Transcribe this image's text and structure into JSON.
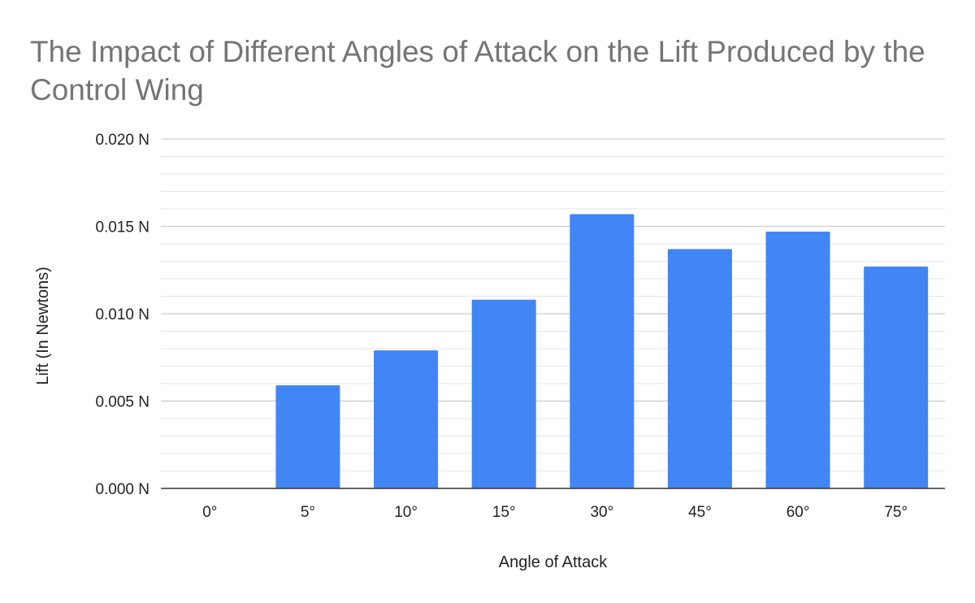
{
  "chart_data": {
    "type": "bar",
    "title": "The Impact of Different Angles of Attack on the Lift Produced by the Control Wing",
    "xlabel": "Angle of Attack",
    "ylabel": "Lift (In Newtons)",
    "categories": [
      "0°",
      "5°",
      "10°",
      "15°",
      "30°",
      "45°",
      "60°",
      "75°"
    ],
    "values": [
      0,
      0.0059,
      0.0079,
      0.0108,
      0.0157,
      0.0137,
      0.0147,
      0.0127
    ],
    "ylim": [
      0,
      0.02
    ],
    "yticks": [
      {
        "value": 0,
        "label": "0.000 N"
      },
      {
        "value": 0.005,
        "label": "0.005 N"
      },
      {
        "value": 0.01,
        "label": "0.010 N"
      },
      {
        "value": 0.015,
        "label": "0.015 N"
      },
      {
        "value": 0.02,
        "label": "0.020 N"
      }
    ],
    "minor_gridlines_per_major": 5,
    "grid": true,
    "legend": "none",
    "bar_color": "#4285f4"
  }
}
